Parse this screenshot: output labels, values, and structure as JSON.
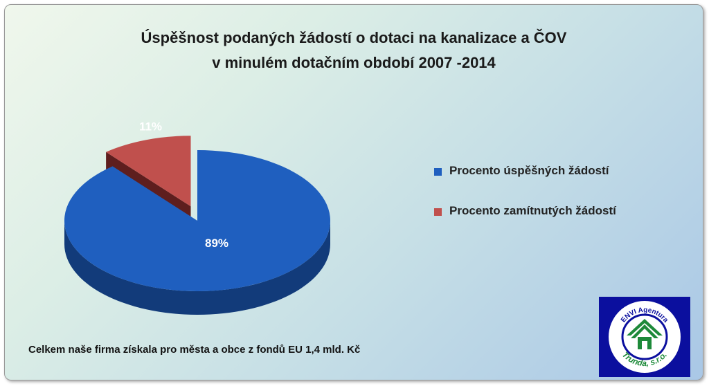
{
  "chart_data": {
    "type": "pie",
    "title_lines": [
      "Úspěšnost podaných žádostí o dotaci  na kanalizace a ČOV",
      "v minulém dotačním období 2007 -2014"
    ],
    "series": [
      {
        "name": "Procento úspěšných žádostí",
        "value": 89,
        "label": "89%",
        "color": "#1f5fbf",
        "side_color": "#123b7a"
      },
      {
        "name": "Procento zamítnutých žádostí",
        "value": 11,
        "label": "11%",
        "color": "#c0504d",
        "side_color": "#5e1e1e"
      }
    ],
    "legend_position": "right",
    "exploded_series": "Procento zamítnutých žádostí"
  },
  "footnote": "Celkem naše firma získala pro města a obce z fondů EU 1,4 mld. Kč",
  "logo": {
    "text_top": "ENVI Agentura",
    "text_bottom": "Trunda, s.r.o.",
    "ring_color": "#0b0f9e",
    "house_color": "#1e8a3a"
  }
}
